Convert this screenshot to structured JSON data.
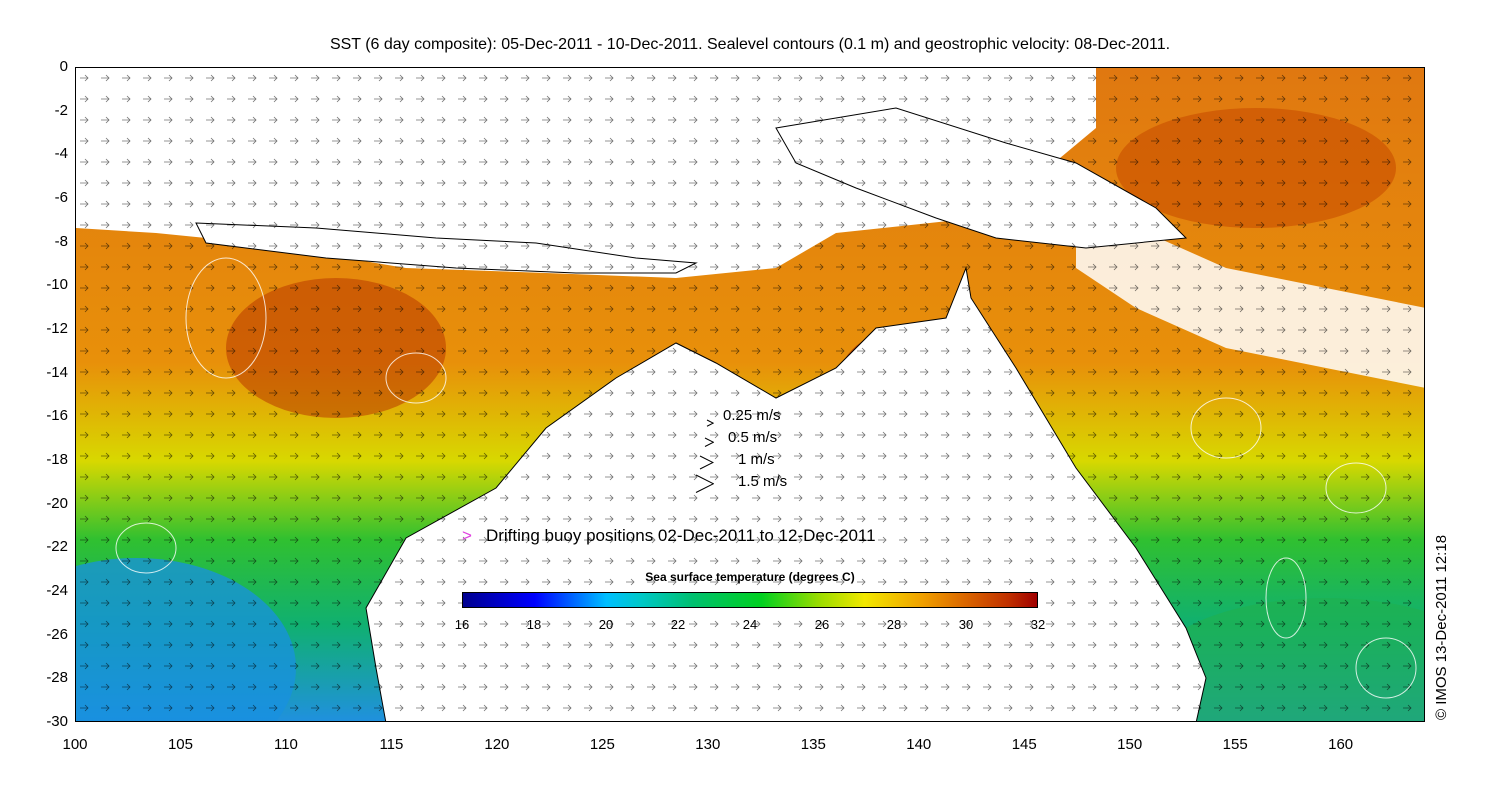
{
  "title": "SST (6 day composite): 05-Dec-2011 - 10-Dec-2011. Sealevel contours (0.1 m) and geostrophic velocity: 08-Dec-2011.",
  "axes": {
    "x_ticks": [
      "100",
      "105",
      "110",
      "115",
      "120",
      "125",
      "130",
      "135",
      "140",
      "145",
      "150",
      "155",
      "160"
    ],
    "y_ticks": [
      "0",
      "-2",
      "-4",
      "-6",
      "-8",
      "-10",
      "-12",
      "-14",
      "-16",
      "-18",
      "-20",
      "-22",
      "-24",
      "-26",
      "-28",
      "-30"
    ],
    "lon_range": [
      100,
      164
    ],
    "lat_range": [
      -30,
      0
    ]
  },
  "velocity_legend": [
    {
      "speed_ms": 0.25,
      "label": "0.25 m/s"
    },
    {
      "speed_ms": 0.5,
      "label": "0.5 m/s"
    },
    {
      "speed_ms": 1,
      "label": "1 m/s"
    },
    {
      "speed_ms": 1.5,
      "label": "1.5 m/s"
    }
  ],
  "buoy_legend": {
    "label": "Drifting buoy positions 02-Dec-2011 to 12-Dec-2011",
    "color": "#e040e0"
  },
  "colorbar": {
    "title": "Sea surface temperature (degrees C)",
    "ticks": [
      "16",
      "18",
      "20",
      "22",
      "24",
      "26",
      "28",
      "30",
      "32"
    ],
    "range": [
      16,
      32
    ]
  },
  "copyright": "© IMOS 13-Dec-2011 12:18",
  "colors": {
    "land": "#ffffff",
    "warm": "#d86a10",
    "hot": "#a02800",
    "mid": "#f0a000",
    "cool": "#00b050",
    "cold": "#1890e0"
  }
}
